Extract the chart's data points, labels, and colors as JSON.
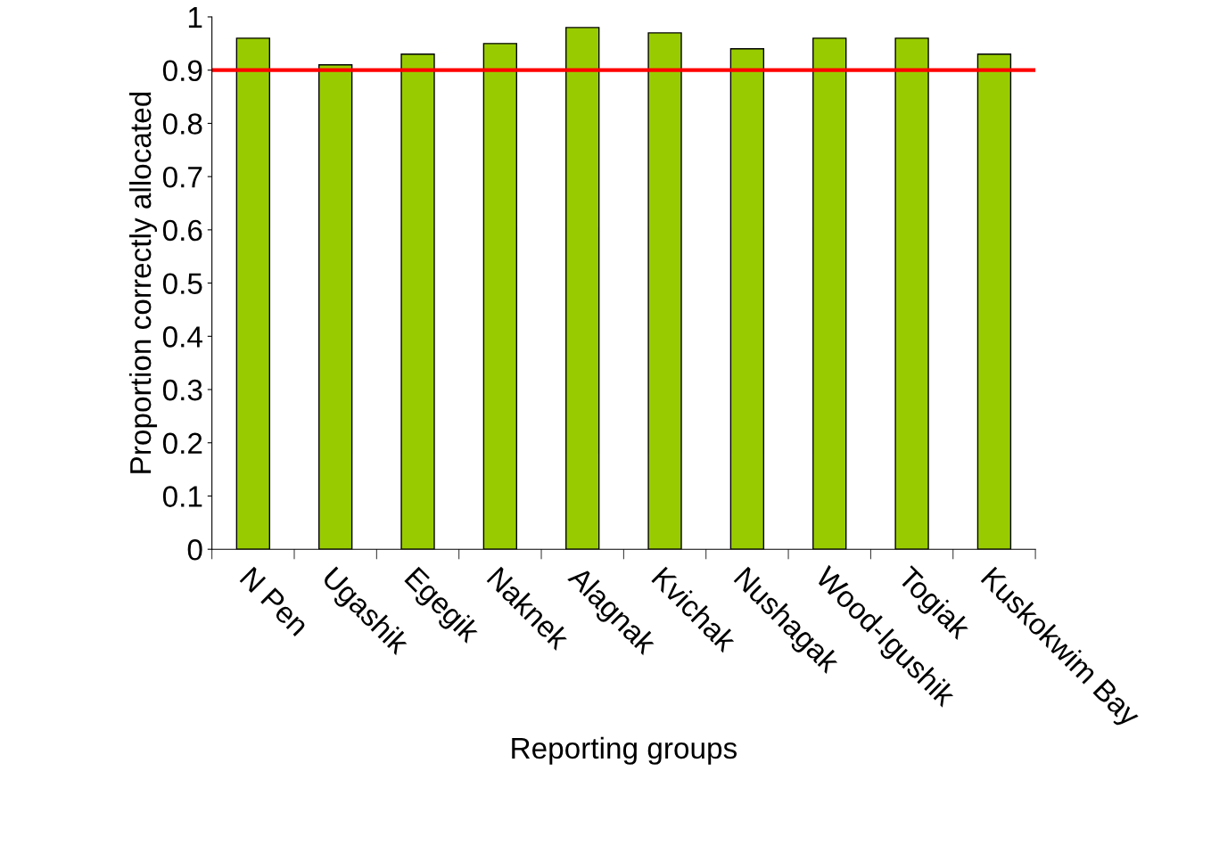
{
  "chart_data": {
    "type": "bar",
    "xlabel": "Reporting groups",
    "ylabel": "Proportion correctly allocated",
    "categories": [
      "N Pen",
      "Ugashik",
      "Egegik",
      "Naknek",
      "Alagnak",
      "Kvichak",
      "Nushagak",
      "Wood-Igushik",
      "Togiak",
      "Kuskokwim Bay"
    ],
    "values": [
      0.96,
      0.91,
      0.93,
      0.95,
      0.98,
      0.97,
      0.94,
      0.96,
      0.96,
      0.93
    ],
    "color": "#99cc00",
    "ylim": [
      0,
      1
    ],
    "yticks": [
      0,
      0.1,
      0.2,
      0.3,
      0.4,
      0.5,
      0.6,
      0.7,
      0.8,
      0.9,
      1
    ],
    "ref_lines": [
      {
        "axis": "y",
        "value": 0.9,
        "color": "#ff0000",
        "line_style": "solid"
      }
    ],
    "grid": false,
    "legend": false
  }
}
